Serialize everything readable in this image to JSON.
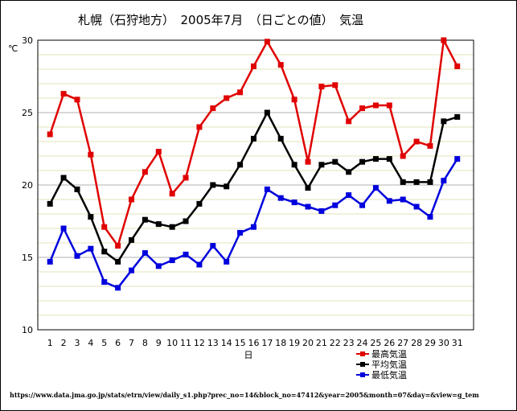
{
  "chart_data": {
    "type": "line",
    "title": "札幌（石狩地方）　2005年7月　（日ごとの値）　気温",
    "ylabel": "℃",
    "xlabel": "日",
    "ylim": [
      10,
      30
    ],
    "yticks": [
      10,
      15,
      20,
      25,
      30
    ],
    "x": [
      1,
      2,
      3,
      4,
      5,
      6,
      7,
      8,
      9,
      10,
      11,
      12,
      13,
      14,
      15,
      16,
      17,
      18,
      19,
      20,
      21,
      22,
      23,
      24,
      25,
      26,
      27,
      28,
      29,
      30,
      31
    ],
    "grid": true,
    "legend_position": "bottom-right",
    "series": [
      {
        "name": "最高気温",
        "color": "#e00000",
        "values": [
          23.5,
          26.3,
          25.9,
          22.1,
          17.1,
          15.8,
          19.0,
          20.9,
          22.3,
          19.4,
          20.5,
          24.0,
          25.3,
          26.0,
          26.4,
          28.2,
          29.9,
          28.3,
          25.9,
          21.6,
          26.8,
          26.9,
          24.4,
          25.3,
          25.5,
          25.5,
          22.0,
          23.0,
          22.7,
          30.0,
          28.2
        ]
      },
      {
        "name": "平均気温",
        "color": "#000000",
        "values": [
          18.7,
          20.5,
          19.7,
          17.8,
          15.4,
          14.7,
          16.2,
          17.6,
          17.3,
          17.1,
          17.5,
          18.7,
          20.0,
          19.9,
          21.4,
          23.2,
          25.0,
          23.2,
          21.4,
          19.8,
          21.4,
          21.6,
          20.9,
          21.6,
          21.8,
          21.8,
          20.2,
          20.2,
          20.2,
          24.4,
          24.7
        ]
      },
      {
        "name": "最低気温",
        "color": "#0000dd",
        "values": [
          14.7,
          17.0,
          15.1,
          15.6,
          13.3,
          12.9,
          14.1,
          15.3,
          14.4,
          14.8,
          15.2,
          14.5,
          15.8,
          14.7,
          16.7,
          17.1,
          19.7,
          19.1,
          18.8,
          18.5,
          18.2,
          18.6,
          19.3,
          18.6,
          19.8,
          18.9,
          19.0,
          18.5,
          17.8,
          20.3,
          21.8
        ]
      }
    ],
    "source_url": "https://www.data.jma.go.jp/stats/etrn/view/daily_s1.php?prec_no=14&block_no=47412&year=2005&month=07&day=&view=g_tem"
  }
}
